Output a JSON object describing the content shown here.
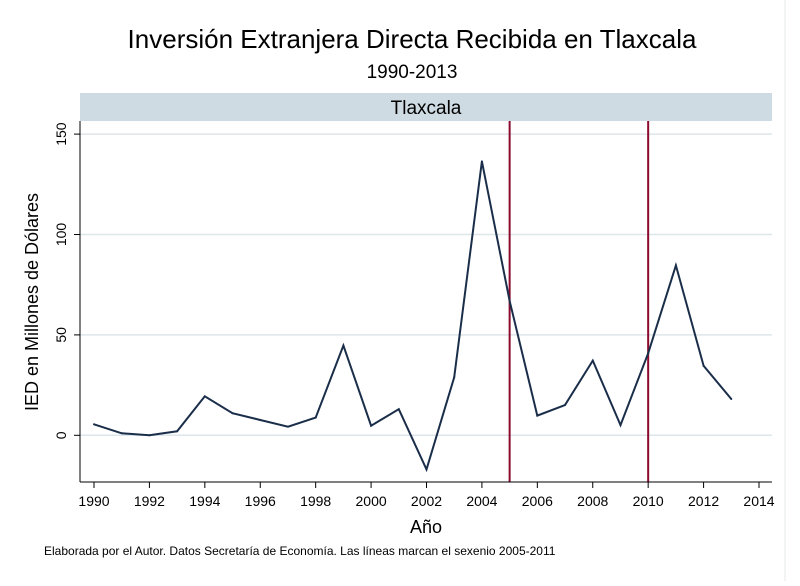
{
  "chart_data": {
    "type": "line",
    "title": "Inversión Extranjera Directa Recibida en Tlaxcala",
    "subtitle": "1990-2013",
    "panel_label": "Tlaxcala",
    "xlabel": "Año",
    "ylabel": "IED en Millones de Dólares",
    "note": "Elaborada por el Autor. Datos Secretaría de Economía. Las líneas marcan el sexenio 2005-2011",
    "xlim": [
      1990,
      2014
    ],
    "ylim": [
      -20,
      155
    ],
    "xticks": [
      "1990",
      "1992",
      "1994",
      "1996",
      "1998",
      "2000",
      "2002",
      "2004",
      "2006",
      "2008",
      "2010",
      "2012",
      "2014"
    ],
    "yticks": [
      "0",
      "50",
      "100",
      "150"
    ],
    "grid": true,
    "x": [
      1990,
      1991,
      1992,
      1993,
      1994,
      1995,
      1996,
      1997,
      1998,
      1999,
      2000,
      2001,
      2002,
      2003,
      2004,
      2005,
      2006,
      2007,
      2008,
      2009,
      2010,
      2011,
      2012,
      2013
    ],
    "values": [
      5.5,
      1,
      0,
      2,
      19.4,
      11,
      7.6,
      4.3,
      8.8,
      44.7,
      4.8,
      13,
      -17,
      28.9,
      136.4,
      67,
      9.8,
      15.1,
      37.2,
      5.1,
      40.9,
      84.6,
      34.6,
      18.1
    ],
    "vlines": [
      2005,
      2010
    ],
    "colors": {
      "line": "#1a2e4a",
      "vline": "#8b0a2e",
      "strip": "#cfdbe3",
      "grid": "#dde6ea"
    }
  }
}
